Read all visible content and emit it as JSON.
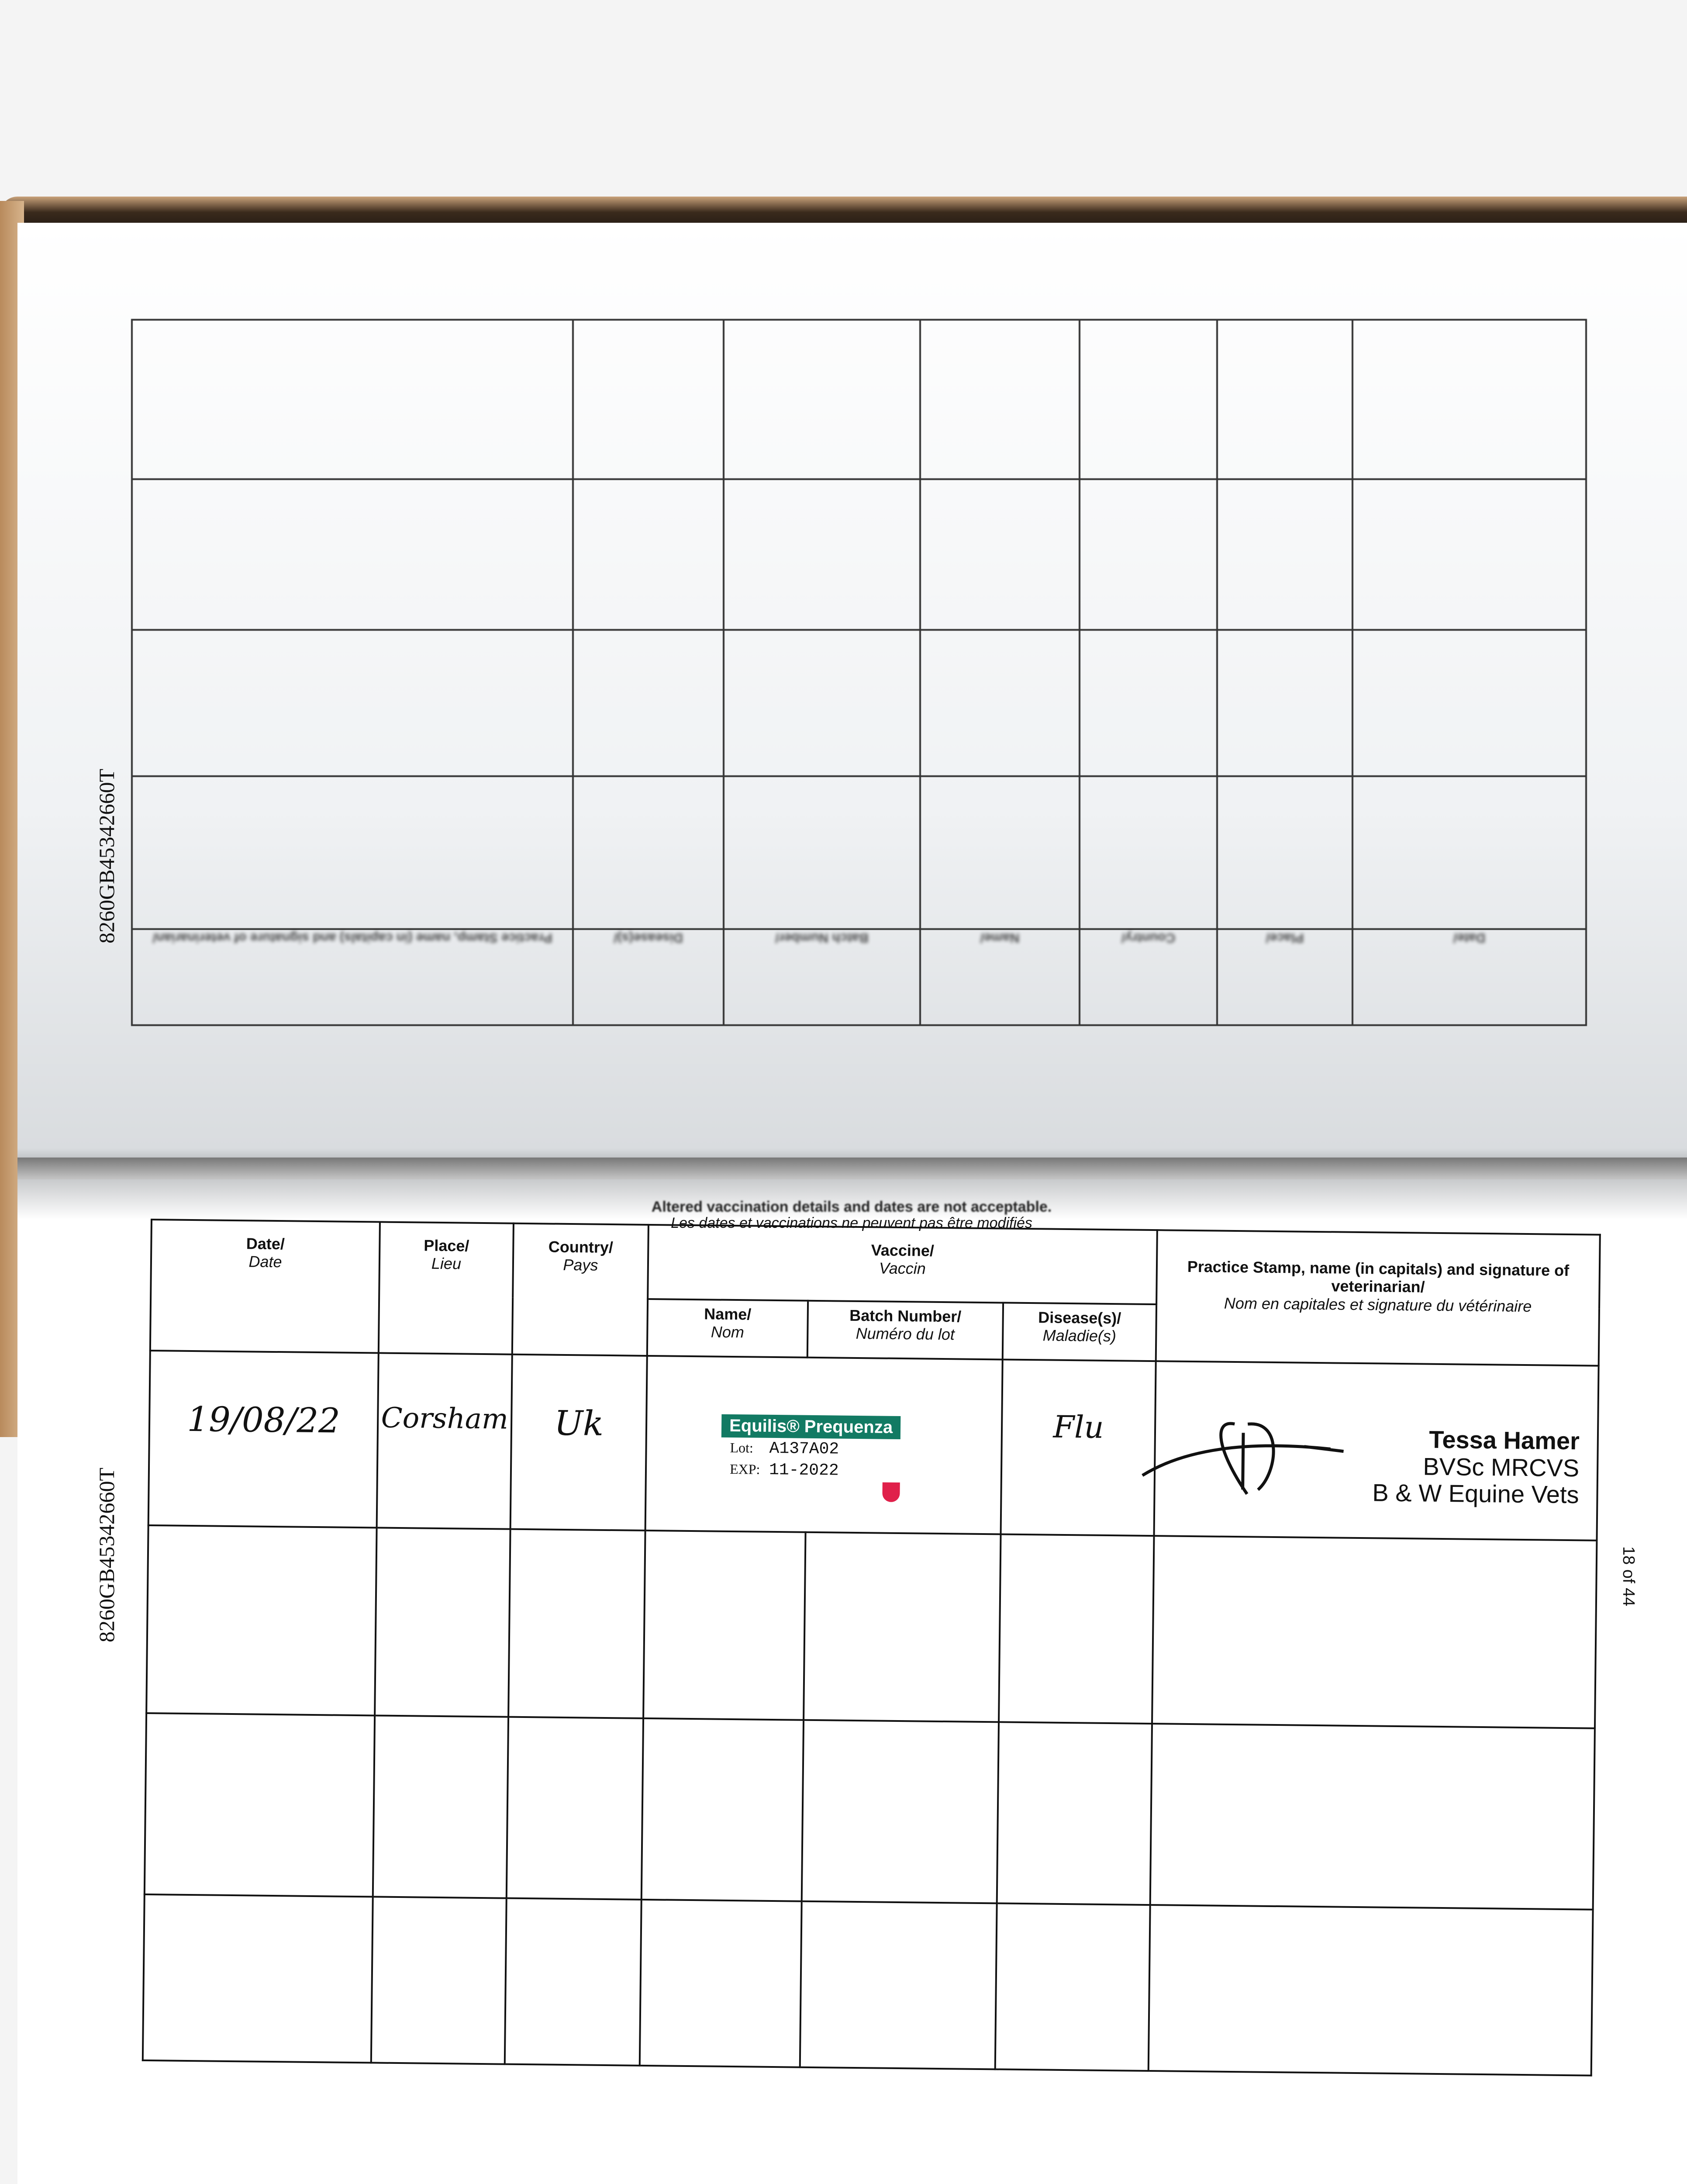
{
  "serial_number": "8260GB45342660T",
  "page_number": "18 of 44",
  "notice": {
    "en": "Altered vaccination details and dates are not acceptable.",
    "fr": "Les dates et vaccinations ne peuvent pas être modifiés"
  },
  "headers": {
    "date": {
      "en": "Date/",
      "fr": "Date"
    },
    "place": {
      "en": "Place/",
      "fr": "Lieu"
    },
    "country": {
      "en": "Country/",
      "fr": "Pays"
    },
    "vaccine": {
      "en": "Vaccine/",
      "fr": "Vaccin"
    },
    "name": {
      "en": "Name/",
      "fr": "Nom"
    },
    "batch": {
      "en": "Batch Number/",
      "fr": "Numéro du lot"
    },
    "disease": {
      "en": "Disease(s)/",
      "fr": "Maladie(s)"
    },
    "practice": {
      "en": "Practice Stamp, name (in capitals) and signature of veterinarian/",
      "fr": "Nom en capitales et signature du vétérinaire"
    }
  },
  "entries": [
    {
      "date": "19/08/22",
      "place": "Corsham",
      "country": "Uk",
      "vaccine_label": {
        "brand": "Equilis® Prequenza",
        "lot_label": "Lot:",
        "lot": "A137A02",
        "exp_label": "EXP:",
        "exp": "11-2022"
      },
      "disease": "Flu",
      "vet": {
        "name": "Tessa Hamer",
        "qualifications": "BVSc MRCVS",
        "practice": "B & W Equine Vets"
      }
    }
  ],
  "colors": {
    "label_green": "#127a63",
    "label_mark": "#e0204a",
    "cover_brown": "#b88a5c"
  }
}
